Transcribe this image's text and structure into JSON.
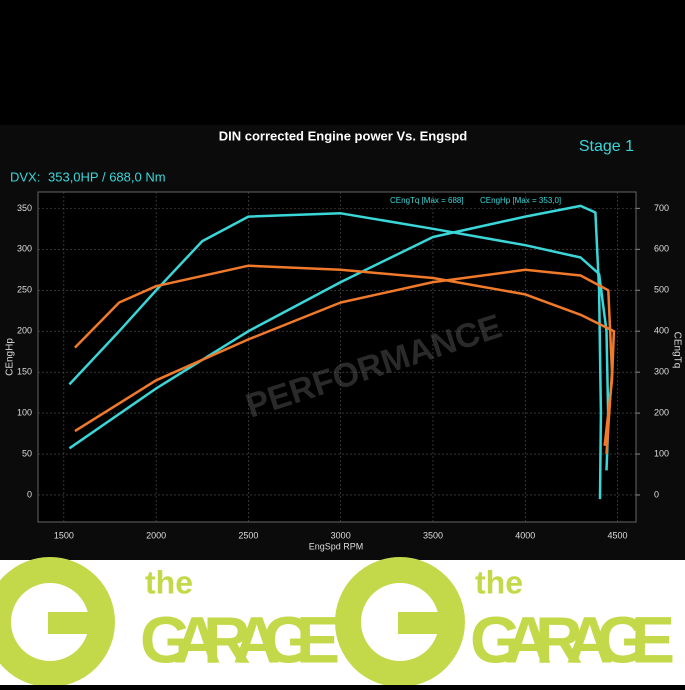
{
  "chart_data": {
    "type": "line",
    "title": "DIN corrected Engine power Vs. Engspd",
    "stage_label": "Stage 1",
    "summary_label": "DVX:",
    "summary_value": "353,0HP / 688,0 Nm",
    "watermark": "PERFORMANCE",
    "x_label": "EngSpd RPM",
    "y_label": "CEngHp",
    "y2_label": "CEngTq",
    "xlim": [
      1360,
      4600
    ],
    "xticks": [
      1500,
      2000,
      2500,
      3000,
      3500,
      4000,
      4500
    ],
    "ylim": [
      -33,
      370
    ],
    "yticks": [
      0,
      50,
      100,
      150,
      200,
      250,
      300,
      350
    ],
    "y2lim": [
      -66,
      740
    ],
    "y2ticks": [
      0,
      100,
      200,
      300,
      400,
      500,
      600,
      700
    ],
    "grid": true,
    "series": [
      {
        "name": "CEngTq [Max = 688]",
        "color": "#3ad6d8",
        "axis": "y2",
        "x": [
          1530,
          1800,
          2000,
          2250,
          2500,
          3000,
          3500,
          4000,
          4300,
          4400,
          4440,
          4450,
          4440
        ],
        "values": [
          270,
          400,
          500,
          620,
          680,
          688,
          650,
          610,
          580,
          540,
          400,
          180,
          60
        ]
      },
      {
        "name": "CEngHp [Max = 353,0]",
        "color": "#3ad6d8",
        "x": [
          1530,
          2000,
          2500,
          3000,
          3500,
          4000,
          4300,
          4380,
          4400,
          4410,
          4405
        ],
        "values": [
          57,
          130,
          200,
          260,
          315,
          340,
          353,
          345,
          250,
          100,
          -5
        ]
      },
      {
        "color": "#f07a2a",
        "axis": "y2",
        "x": [
          1560,
          1800,
          2000,
          2500,
          3000,
          3500,
          4000,
          4300,
          4480,
          4470,
          4430
        ],
        "values": [
          360,
          470,
          510,
          560,
          550,
          530,
          490,
          440,
          400,
          280,
          120
        ]
      },
      {
        "color": "#f07a2a",
        "x": [
          1560,
          2000,
          2500,
          3000,
          3500,
          4000,
          4300,
          4450,
          4470,
          4440
        ],
        "values": [
          78,
          140,
          190,
          235,
          260,
          275,
          268,
          250,
          150,
          50
        ]
      }
    ]
  },
  "branding": [
    {
      "small": "the",
      "big": "GARAGE"
    },
    {
      "small": "the",
      "big": "GARAGE"
    }
  ]
}
